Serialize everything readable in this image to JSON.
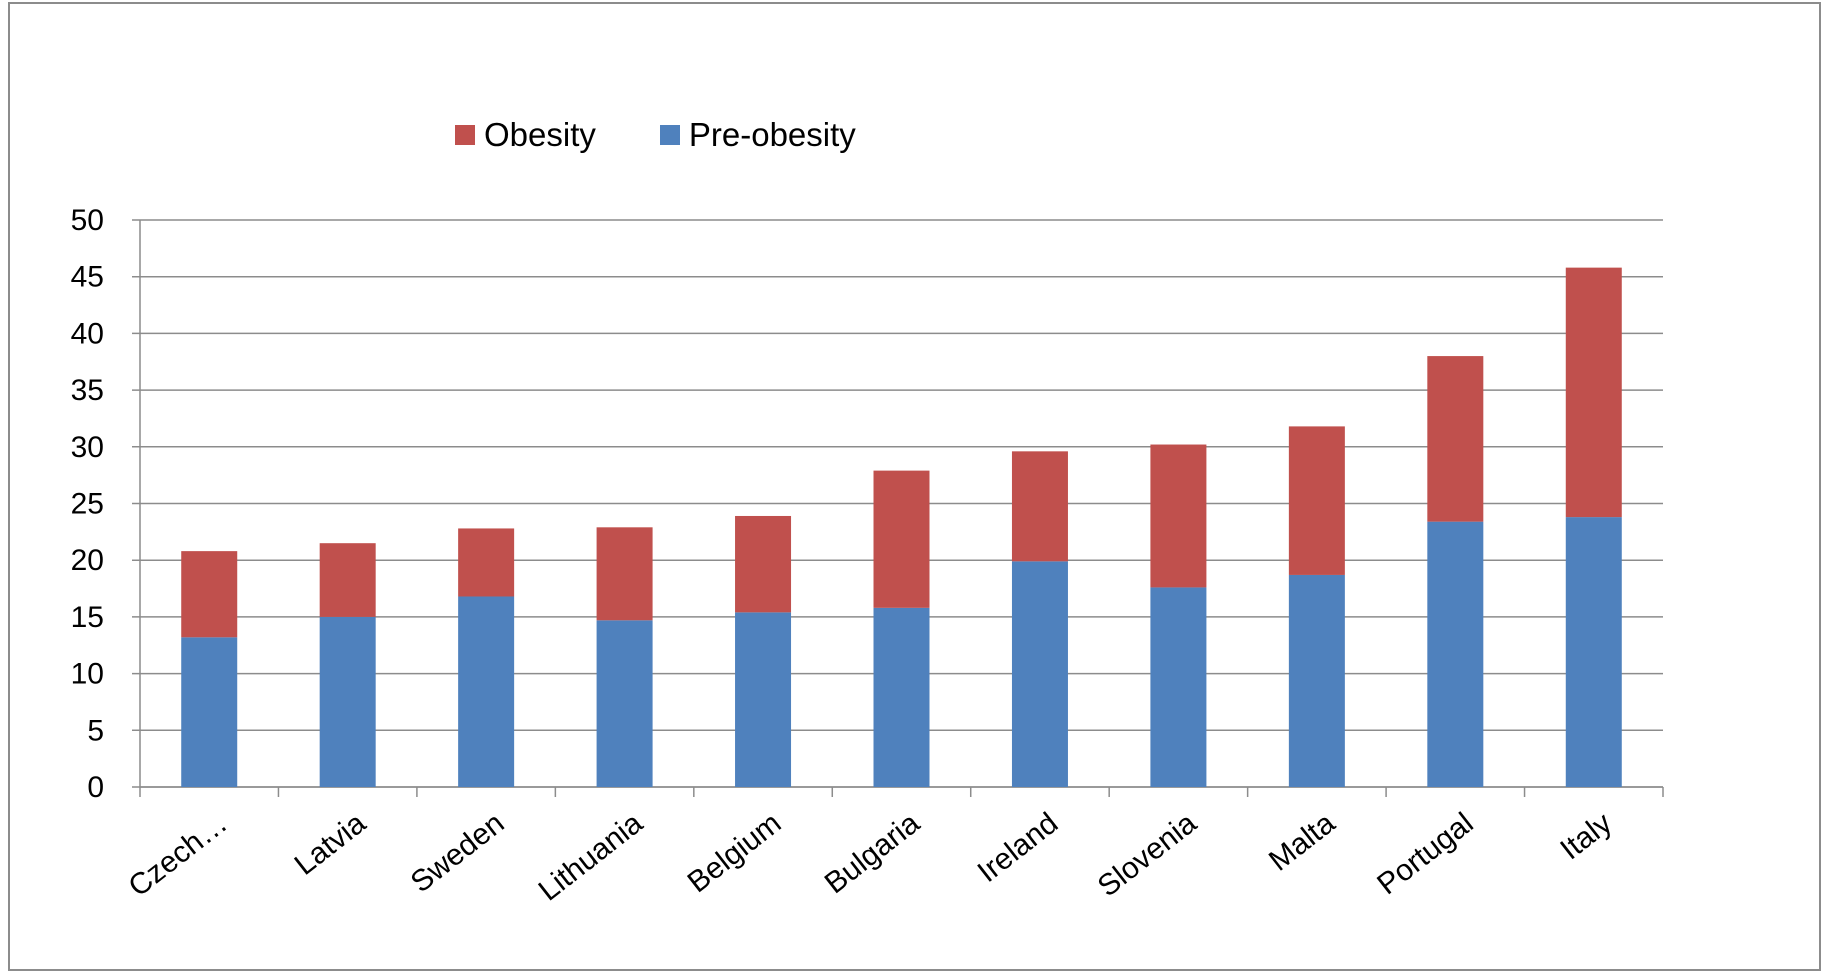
{
  "chart_data": {
    "type": "bar",
    "stacked": true,
    "categories": [
      "Czech…",
      "Latvia",
      "Sweden",
      "Lithuania",
      "Belgium",
      "Bulgaria",
      "Ireland",
      "Slovenia",
      "Malta",
      "Portugal",
      "Italy"
    ],
    "series": [
      {
        "name": "Pre-obesity",
        "color": "#4f81bd",
        "values": [
          13.2,
          15.0,
          16.8,
          14.7,
          15.4,
          15.8,
          19.9,
          17.6,
          18.7,
          23.4,
          23.8
        ]
      },
      {
        "name": "Obesity",
        "color": "#c0504d",
        "values": [
          7.6,
          6.5,
          6.0,
          8.2,
          8.5,
          12.1,
          9.7,
          12.6,
          13.1,
          14.6,
          22.0
        ]
      }
    ],
    "legend_order": [
      "Obesity",
      "Pre-obesity"
    ],
    "legend_position": "top",
    "ylim": [
      0,
      50
    ],
    "yticks": [
      0,
      5,
      10,
      15,
      20,
      25,
      30,
      35,
      40,
      45,
      50
    ],
    "grid": true,
    "title": "",
    "xlabel": "",
    "ylabel": ""
  }
}
